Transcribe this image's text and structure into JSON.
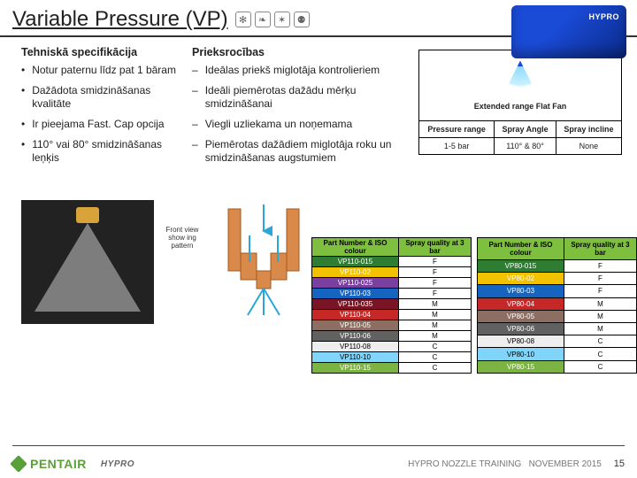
{
  "title": "Variable Pressure (VP)",
  "icons": [
    "propeller-icon",
    "leaf-icon",
    "bug-icon",
    "beetle-icon"
  ],
  "tech": {
    "heading": "Tehniskā specifikācija",
    "items": [
      "Notur paternu līdz pat 1 bāram",
      "Dažādota smidzināšanas kvalitāte",
      "Ir pieejama Fast. Cap opcija",
      "110° vai 80° smidzināšanas leņķis"
    ]
  },
  "adv": {
    "heading": "Prieksrocības",
    "items": [
      "Ideālas priekš miglotāja kontrolieriem",
      "Ideāli piemērotas dažādu mērķu smidzināšanai",
      "Viegli uzliekama un noņemama",
      "Piemērotas dažādiem miglotāja roku un smidzināšanas augstumiem"
    ]
  },
  "efan": {
    "caption": "Extended range Flat Fan",
    "headers": [
      "Pressure range",
      "Spray Angle",
      "Spray incline"
    ],
    "row": [
      "1-5 bar",
      "110° & 80°",
      "None"
    ]
  },
  "diag_label": "Front view show ing pattern",
  "pq_header": [
    "Part Number & ISO colour",
    "Spray quality at 3 bar"
  ],
  "pq_left": [
    {
      "pn": "VP110-015",
      "q": "F",
      "bg": "#2e7d32"
    },
    {
      "pn": "VP110-02",
      "q": "F",
      "bg": "#f2c200"
    },
    {
      "pn": "VP110-025",
      "q": "F",
      "bg": "#7b3fa0"
    },
    {
      "pn": "VP110-03",
      "q": "F",
      "bg": "#1565c0"
    },
    {
      "pn": "VP110-035",
      "q": "M",
      "bg": "#7a1525"
    },
    {
      "pn": "VP110-04",
      "q": "M",
      "bg": "#c62828"
    },
    {
      "pn": "VP110-05",
      "q": "M",
      "bg": "#8d6e63"
    },
    {
      "pn": "VP110-06",
      "q": "M",
      "bg": "#616161"
    },
    {
      "pn": "VP110-08",
      "q": "C",
      "bg": "#eeeeee",
      "fg": "#000"
    },
    {
      "pn": "VP110-10",
      "q": "C",
      "bg": "#81d4fa",
      "fg": "#000"
    },
    {
      "pn": "VP110-15",
      "q": "C",
      "bg": "#7cb342"
    }
  ],
  "pq_right": [
    {
      "pn": "VP80-015",
      "q": "F",
      "bg": "#2e7d32"
    },
    {
      "pn": "VP80-02",
      "q": "F",
      "bg": "#f2c200"
    },
    {
      "pn": "VP80-03",
      "q": "F",
      "bg": "#1565c0"
    },
    {
      "pn": "VP80-04",
      "q": "M",
      "bg": "#c62828"
    },
    {
      "pn": "VP80-05",
      "q": "M",
      "bg": "#8d6e63"
    },
    {
      "pn": "VP80-06",
      "q": "M",
      "bg": "#616161"
    },
    {
      "pn": "VP80-08",
      "q": "C",
      "bg": "#eeeeee",
      "fg": "#000"
    },
    {
      "pn": "VP80-10",
      "q": "C",
      "bg": "#81d4fa",
      "fg": "#000"
    },
    {
      "pn": "VP80-15",
      "q": "C",
      "bg": "#7cb342"
    }
  ],
  "footer": {
    "brand": "PENTAIR",
    "sub": "HYPRO",
    "text": "HYPRO NOZZLE TRAINING",
    "date": "NOVEMBER 2015",
    "page": "15"
  }
}
